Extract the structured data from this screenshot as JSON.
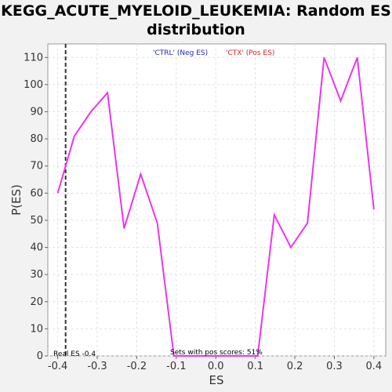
{
  "chart_data": {
    "type": "line",
    "title_line1": "KEGG_ACUTE_MYELOID_LEUKEMIA: Random ES",
    "title_line2": "distribution",
    "xlabel": "ES",
    "ylabel": "P(ES)",
    "xlim": [
      -0.425,
      0.43
    ],
    "ylim": [
      0,
      115
    ],
    "xticks": [
      -0.4,
      -0.3,
      -0.2,
      -0.1,
      0.0,
      0.1,
      0.2,
      0.3,
      0.4
    ],
    "xtick_labels": [
      "-0.4",
      "-0.3",
      "-0.2",
      "-0.1",
      "0.0",
      "0.1",
      "0.2",
      "0.3",
      "0.4"
    ],
    "yticks": [
      0,
      10,
      20,
      30,
      40,
      50,
      60,
      70,
      80,
      90,
      100,
      110
    ],
    "ytick_labels": [
      "0",
      "10",
      "20",
      "30",
      "40",
      "50",
      "60",
      "70",
      "80",
      "90",
      "100",
      "110"
    ],
    "grid": true,
    "series": [
      {
        "color": "#ee33ee",
        "x": [
          -0.4,
          -0.358,
          -0.316,
          -0.274,
          -0.232,
          -0.19,
          -0.148,
          -0.106,
          -0.064,
          0.064,
          0.106,
          0.148,
          0.19,
          0.232,
          0.274,
          0.316,
          0.358,
          0.4
        ],
        "y": [
          60,
          81,
          90,
          97,
          47,
          67,
          49,
          0,
          0,
          0,
          0,
          52,
          40,
          49,
          110,
          94,
          110,
          54
        ]
      }
    ],
    "real_es": -0.38,
    "legend": [
      {
        "text": "'CTRL' (Neg ES)",
        "color": "#2222cc"
      },
      {
        "text": "'CTX' (Pos ES)",
        "color": "#dd2222"
      }
    ],
    "annotations": {
      "real_es": "Real ES -0.4",
      "pos_scores": "Sets with pos scores: 51%"
    }
  }
}
